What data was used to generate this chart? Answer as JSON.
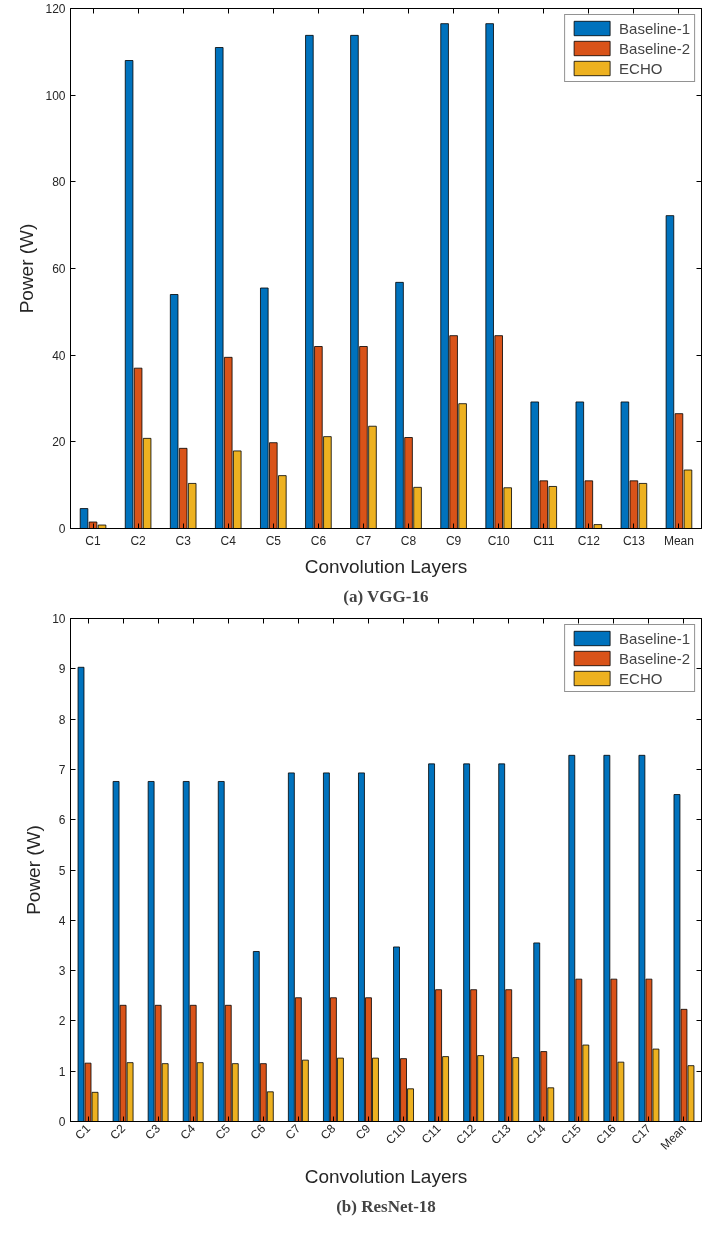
{
  "chart_data": [
    {
      "type": "bar",
      "title": "(a) VGG-16",
      "xlabel": "Convolution Layers",
      "ylabel": "Power (W)",
      "categories": [
        "C1",
        "C2",
        "C3",
        "C4",
        "C5",
        "C6",
        "C7",
        "C8",
        "C9",
        "C10",
        "C11",
        "C12",
        "C13",
        "Mean"
      ],
      "ylim": [
        0,
        120
      ],
      "yticks": [
        0,
        20,
        40,
        60,
        80,
        100,
        120
      ],
      "grid": false,
      "legend": "top right",
      "series": [
        {
          "name": "Baseline-1",
          "color": "#0072bd",
          "values": [
            4.6,
            108,
            54,
            111,
            55.5,
            113.8,
            113.8,
            56.8,
            116.5,
            116.5,
            29.2,
            29.2,
            29.2,
            72.2
          ]
        },
        {
          "name": "Baseline-2",
          "color": "#d95319",
          "values": [
            1.5,
            37,
            18.5,
            39.5,
            19.8,
            42,
            42,
            21,
            44.5,
            44.5,
            11,
            11,
            11,
            26.5
          ]
        },
        {
          "name": "ECHO",
          "color": "#edb120",
          "values": [
            0.8,
            20.8,
            10.4,
            17.9,
            12.2,
            21.2,
            23.6,
            9.5,
            28.8,
            9.4,
            9.7,
            0.9,
            10.4,
            13.5
          ]
        }
      ]
    },
    {
      "type": "bar",
      "title": "(b) ResNet-18",
      "xlabel": "Convolution Layers",
      "ylabel": "Power (W)",
      "categories": [
        "C1",
        "C2",
        "C3",
        "C4",
        "C5",
        "C6",
        "C7",
        "C8",
        "C9",
        "C10",
        "C11",
        "C12",
        "C13",
        "C14",
        "C15",
        "C16",
        "C17",
        "Mean"
      ],
      "ylim": [
        0,
        10
      ],
      "yticks": [
        0,
        1,
        2,
        3,
        4,
        5,
        6,
        7,
        8,
        9,
        10
      ],
      "grid": false,
      "legend": "top right",
      "series": [
        {
          "name": "Baseline-1",
          "color": "#0072bd",
          "values": [
            9.03,
            6.76,
            6.76,
            6.76,
            6.76,
            3.38,
            6.93,
            6.93,
            6.93,
            3.47,
            7.11,
            7.11,
            7.11,
            3.55,
            7.28,
            7.28,
            7.28,
            6.5
          ]
        },
        {
          "name": "Baseline-2",
          "color": "#d95319",
          "values": [
            1.16,
            2.31,
            2.31,
            2.31,
            2.31,
            1.15,
            2.46,
            2.46,
            2.46,
            1.25,
            2.62,
            2.62,
            2.62,
            1.39,
            2.83,
            2.83,
            2.83,
            2.23
          ]
        },
        {
          "name": "ECHO",
          "color": "#edb120",
          "values": [
            0.58,
            1.17,
            1.15,
            1.17,
            1.15,
            0.59,
            1.22,
            1.26,
            1.26,
            0.65,
            1.29,
            1.31,
            1.27,
            0.67,
            1.52,
            1.18,
            1.44,
            1.11
          ]
        }
      ]
    }
  ]
}
